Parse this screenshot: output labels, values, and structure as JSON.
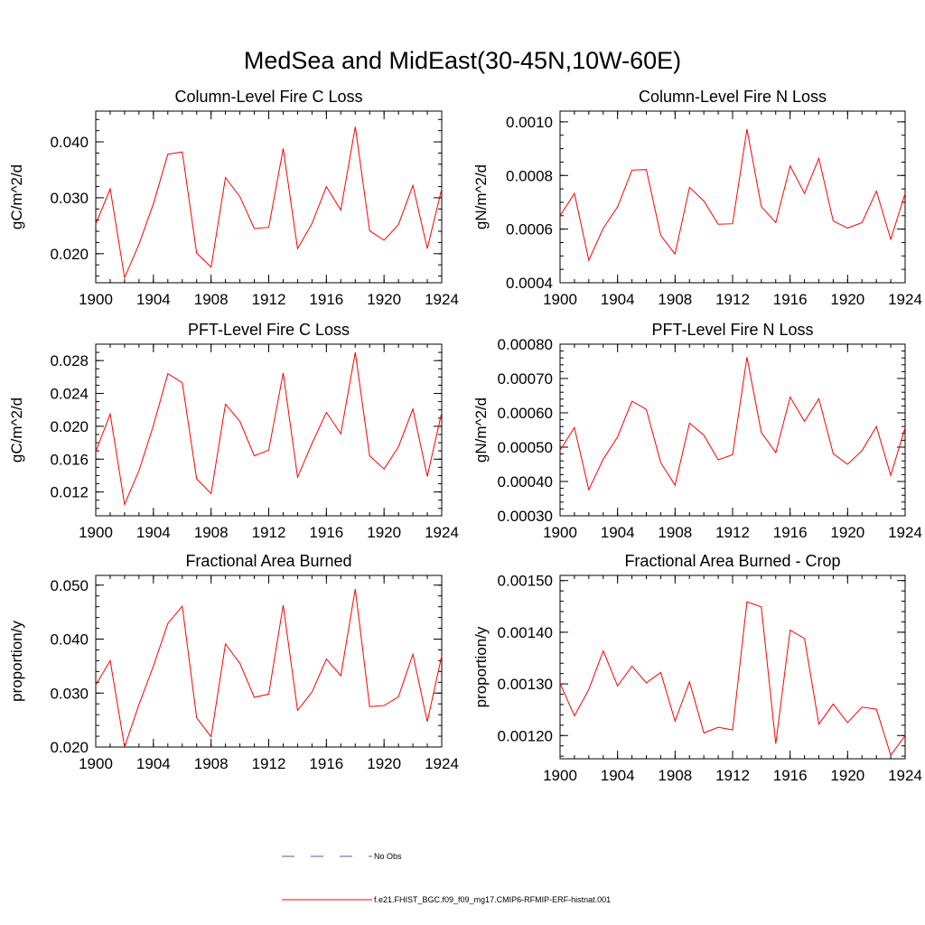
{
  "figure": {
    "title": "MedSea and MidEast(30-45N,10W-60E)"
  },
  "legend": {
    "entries": [
      {
        "label": "No Obs",
        "color": "#4a5aa8",
        "style": "dashed"
      },
      {
        "label": "f.e21.FHIST_BGC.f09_f09_mg17.CMIP6-RFMIP-ERF-histnat.001",
        "color": "#ff0000",
        "style": "solid"
      }
    ]
  },
  "chart_data": [
    {
      "type": "line",
      "title": "Column-Level Fire C Loss",
      "ylabel": "gC/m^2/d",
      "xlabel": "",
      "xlim": [
        1900,
        1924
      ],
      "ylim": [
        0.0148,
        0.0455
      ],
      "xticks": [
        1900,
        1904,
        1908,
        1912,
        1916,
        1920,
        1924
      ],
      "xtick_labels": [
        "1900",
        "1904",
        "1908",
        "1912",
        "1916",
        "1920",
        "1924"
      ],
      "yticks": [
        0.02,
        0.03,
        0.04
      ],
      "ytick_labels": [
        "0.020",
        "0.030",
        "0.040"
      ],
      "ymin_step": 0.002,
      "x": [
        1900,
        1901,
        1902,
        1903,
        1904,
        1905,
        1906,
        1907,
        1908,
        1909,
        1910,
        1911,
        1912,
        1913,
        1914,
        1915,
        1916,
        1917,
        1918,
        1919,
        1920,
        1921,
        1922,
        1923,
        1924
      ],
      "series": [
        {
          "color": "#ff0000",
          "values": [
            0.0253,
            0.0316,
            0.0157,
            0.0217,
            0.0289,
            0.0378,
            0.0382,
            0.0201,
            0.0176,
            0.0336,
            0.0302,
            0.0245,
            0.0247,
            0.0388,
            0.0209,
            0.0254,
            0.032,
            0.0278,
            0.0427,
            0.0241,
            0.0224,
            0.0252,
            0.0322,
            0.0209,
            0.0316
          ]
        }
      ]
    },
    {
      "type": "line",
      "title": "Column-Level Fire N Loss",
      "ylabel": "gN/m^2/d",
      "xlabel": "",
      "xlim": [
        1900,
        1924
      ],
      "ylim": [
        0.0004,
        0.00104
      ],
      "xticks": [
        1900,
        1904,
        1908,
        1912,
        1916,
        1920,
        1924
      ],
      "xtick_labels": [
        "1900",
        "1904",
        "1908",
        "1912",
        "1916",
        "1920",
        "1924"
      ],
      "yticks": [
        0.0004,
        0.0006,
        0.0008,
        0.001
      ],
      "ytick_labels": [
        "0.0004",
        "0.0006",
        "0.0008",
        "0.0010"
      ],
      "ymin_step": 5e-05,
      "x": [
        1900,
        1901,
        1902,
        1903,
        1904,
        1905,
        1906,
        1907,
        1908,
        1909,
        1910,
        1911,
        1912,
        1913,
        1914,
        1915,
        1916,
        1917,
        1918,
        1919,
        1920,
        1921,
        1922,
        1923,
        1924
      ],
      "series": [
        {
          "color": "#ff0000",
          "values": [
            0.00065,
            0.000733,
            0.000484,
            0.000603,
            0.000683,
            0.00082,
            0.000822,
            0.000577,
            0.000507,
            0.000756,
            0.000705,
            0.000618,
            0.00062,
            0.000973,
            0.000684,
            0.000624,
            0.000836,
            0.000733,
            0.000864,
            0.00063,
            0.000604,
            0.000624,
            0.000742,
            0.000562,
            0.000733
          ]
        }
      ]
    },
    {
      "type": "line",
      "title": "PFT-Level Fire C Loss",
      "ylabel": "gC/m^2/d",
      "xlabel": "",
      "xlim": [
        1900,
        1924
      ],
      "ylim": [
        0.0091,
        0.03
      ],
      "xticks": [
        1900,
        1904,
        1908,
        1912,
        1916,
        1920,
        1924
      ],
      "xtick_labels": [
        "1900",
        "1904",
        "1908",
        "1912",
        "1916",
        "1920",
        "1924"
      ],
      "yticks": [
        0.012,
        0.016,
        0.02,
        0.024,
        0.028
      ],
      "ytick_labels": [
        "0.012",
        "0.016",
        "0.020",
        "0.024",
        "0.028"
      ],
      "ymin_step": 0.001,
      "x": [
        1900,
        1901,
        1902,
        1903,
        1904,
        1905,
        1906,
        1907,
        1908,
        1909,
        1910,
        1911,
        1912,
        1913,
        1914,
        1915,
        1916,
        1917,
        1918,
        1919,
        1920,
        1921,
        1922,
        1923,
        1924
      ],
      "series": [
        {
          "color": "#ff0000",
          "values": [
            0.0169,
            0.0215,
            0.0105,
            0.0146,
            0.0201,
            0.0264,
            0.0253,
            0.0136,
            0.0118,
            0.0227,
            0.0206,
            0.0164,
            0.0171,
            0.0265,
            0.0138,
            0.0179,
            0.0217,
            0.0191,
            0.029,
            0.0164,
            0.0148,
            0.0175,
            0.0221,
            0.0139,
            0.0217
          ]
        }
      ]
    },
    {
      "type": "line",
      "title": "PFT-Level Fire N Loss",
      "ylabel": "gN/m^2/d",
      "xlabel": "",
      "xlim": [
        1900,
        1924
      ],
      "ylim": [
        0.0003,
        0.0008
      ],
      "xticks": [
        1900,
        1904,
        1908,
        1912,
        1916,
        1920,
        1924
      ],
      "xtick_labels": [
        "1900",
        "1904",
        "1908",
        "1912",
        "1916",
        "1920",
        "1924"
      ],
      "yticks": [
        0.0003,
        0.0004,
        0.0005,
        0.0006,
        0.0007,
        0.0008
      ],
      "ytick_labels": [
        "0.00030",
        "0.00040",
        "0.00050",
        "0.00060",
        "0.00070",
        "0.00080"
      ],
      "ymin_step": 2e-05,
      "x": [
        1900,
        1901,
        1902,
        1903,
        1904,
        1905,
        1906,
        1907,
        1908,
        1909,
        1910,
        1911,
        1912,
        1913,
        1914,
        1915,
        1916,
        1917,
        1918,
        1919,
        1920,
        1921,
        1922,
        1923,
        1924
      ],
      "series": [
        {
          "color": "#ff0000",
          "values": [
            0.000491,
            0.000557,
            0.000376,
            0.000465,
            0.00053,
            0.000634,
            0.00061,
            0.000455,
            0.000389,
            0.00057,
            0.000535,
            0.000463,
            0.000478,
            0.000762,
            0.000543,
            0.000484,
            0.000646,
            0.000575,
            0.000641,
            0.000481,
            0.00045,
            0.00049,
            0.00056,
            0.000418,
            0.000557
          ]
        }
      ]
    },
    {
      "type": "line",
      "title": "Fractional Area Burned",
      "ylabel": "proportion/y",
      "xlabel": "",
      "xlim": [
        1900,
        1924
      ],
      "ylim": [
        0.02,
        0.0518
      ],
      "xticks": [
        1900,
        1904,
        1908,
        1912,
        1916,
        1920,
        1924
      ],
      "xtick_labels": [
        "1900",
        "1904",
        "1908",
        "1912",
        "1916",
        "1920",
        "1924"
      ],
      "yticks": [
        0.02,
        0.03,
        0.04,
        0.05
      ],
      "ytick_labels": [
        "0.020",
        "0.030",
        "0.040",
        "0.050"
      ],
      "ymin_step": 0.002,
      "x": [
        1900,
        1901,
        1902,
        1903,
        1904,
        1905,
        1906,
        1907,
        1908,
        1909,
        1910,
        1911,
        1912,
        1913,
        1914,
        1915,
        1916,
        1917,
        1918,
        1919,
        1920,
        1921,
        1922,
        1923,
        1924
      ],
      "series": [
        {
          "color": "#ff0000",
          "values": [
            0.0315,
            0.036,
            0.02,
            0.0279,
            0.035,
            0.0429,
            0.0461,
            0.0254,
            0.0219,
            0.0391,
            0.0355,
            0.0292,
            0.0298,
            0.0463,
            0.0268,
            0.0302,
            0.0363,
            0.0332,
            0.0493,
            0.0275,
            0.0277,
            0.0293,
            0.0372,
            0.0247,
            0.0369
          ]
        }
      ]
    },
    {
      "type": "line",
      "title": "Fractional Area Burned - Crop",
      "ylabel": "proportion/y",
      "xlabel": "",
      "xlim": [
        1900,
        1924
      ],
      "ylim": [
        0.001155,
        0.00151
      ],
      "xticks": [
        1900,
        1904,
        1908,
        1912,
        1916,
        1920,
        1924
      ],
      "xtick_labels": [
        "1900",
        "1904",
        "1908",
        "1912",
        "1916",
        "1920",
        "1924"
      ],
      "yticks": [
        0.0012,
        0.0013,
        0.0014,
        0.0015
      ],
      "ytick_labels": [
        "0.00120",
        "0.00130",
        "0.00140",
        "0.00150"
      ],
      "ymin_step": 2e-05,
      "x": [
        1900,
        1901,
        1902,
        1903,
        1904,
        1905,
        1906,
        1907,
        1908,
        1909,
        1910,
        1911,
        1912,
        1913,
        1914,
        1915,
        1916,
        1917,
        1918,
        1919,
        1920,
        1921,
        1922,
        1923,
        1924
      ],
      "series": [
        {
          "color": "#ff0000",
          "values": [
            0.001301,
            0.001238,
            0.001289,
            0.001364,
            0.001296,
            0.001334,
            0.001302,
            0.001322,
            0.001228,
            0.001304,
            0.001205,
            0.001216,
            0.001211,
            0.001459,
            0.001449,
            0.001184,
            0.001404,
            0.001388,
            0.001222,
            0.001261,
            0.001225,
            0.001255,
            0.001251,
            0.001162,
            0.0012
          ]
        }
      ]
    }
  ]
}
